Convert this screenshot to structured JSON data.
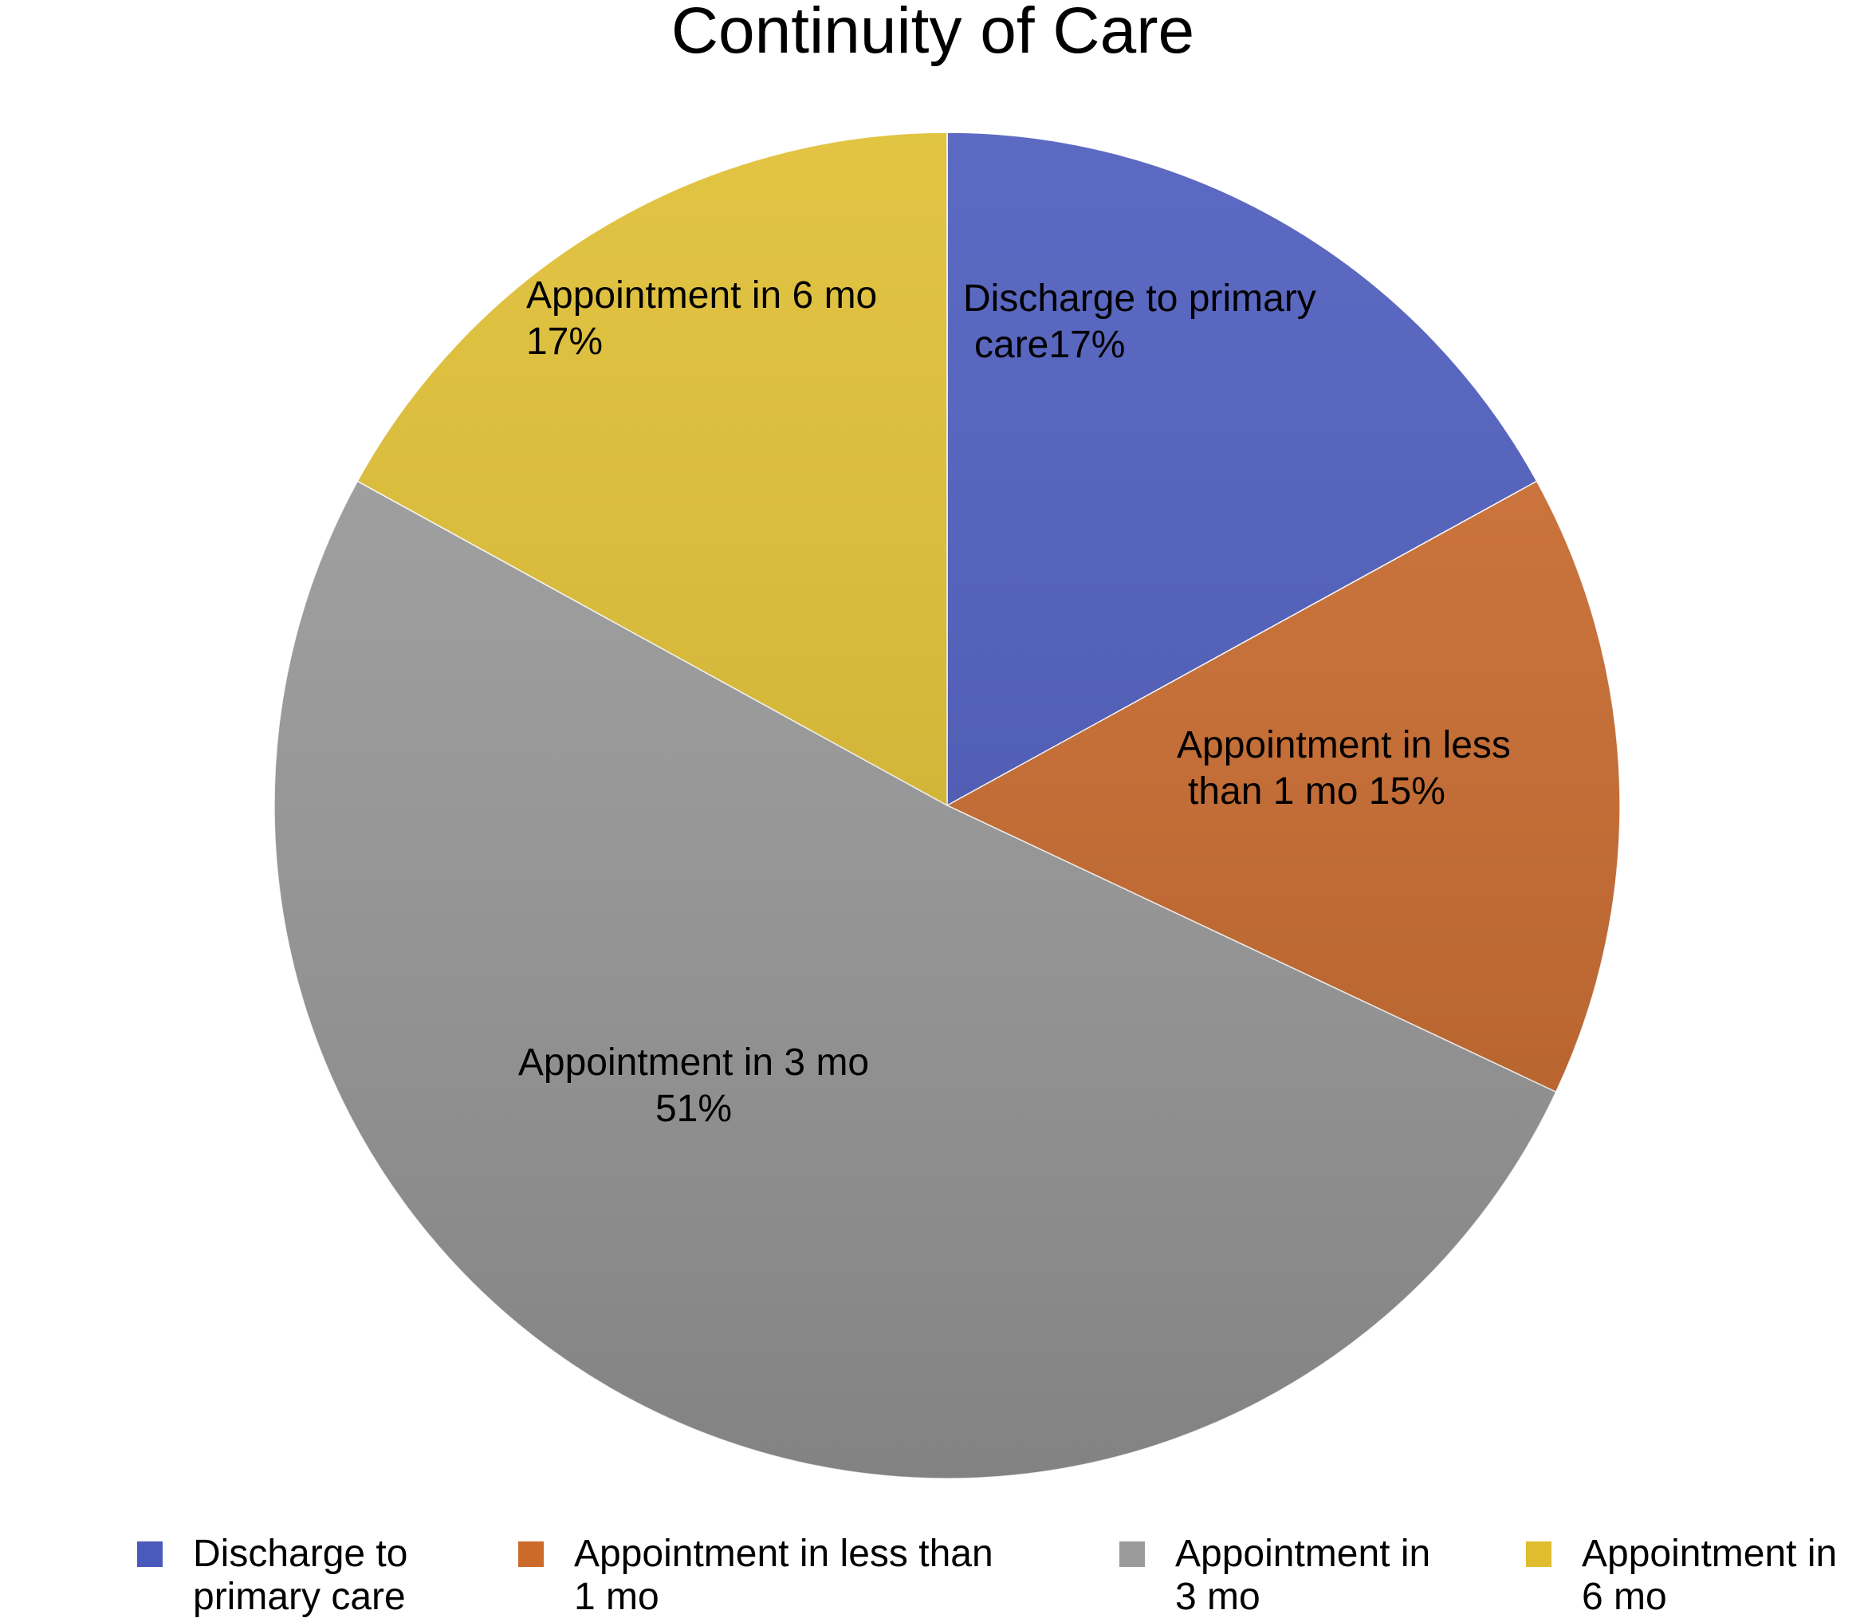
{
  "chart_data": {
    "type": "pie",
    "title": "Continuity of Care",
    "legend_position": "bottom",
    "slices": [
      {
        "name": "Discharge to primary care",
        "value": 17,
        "color": "#4a59bc",
        "data_label": [
          "Discharge to primary",
          "care17%"
        ],
        "legend_label": [
          "Discharge to",
          "primary care"
        ]
      },
      {
        "name": "Appointment in less than 1 mo",
        "value": 15,
        "color": "#cc6a2c",
        "data_label": [
          "Appointment in less",
          "than 1 mo 15%"
        ],
        "legend_label": [
          "Appointment in less than",
          "1 mo"
        ]
      },
      {
        "name": "Appointment in 3 mo",
        "value": 51,
        "color": "#9b9b9b",
        "data_label": [
          "Appointment in 3 mo",
          "51%"
        ],
        "legend_label": [
          "Appointment in",
          "3 mo"
        ]
      },
      {
        "name": "Appointment in 6 mo",
        "value": 17,
        "color": "#dfbd2e",
        "data_label": [
          "Appointment in 6 mo",
          "17%"
        ],
        "legend_label": [
          "Appointment in",
          "6 mo"
        ]
      }
    ]
  }
}
